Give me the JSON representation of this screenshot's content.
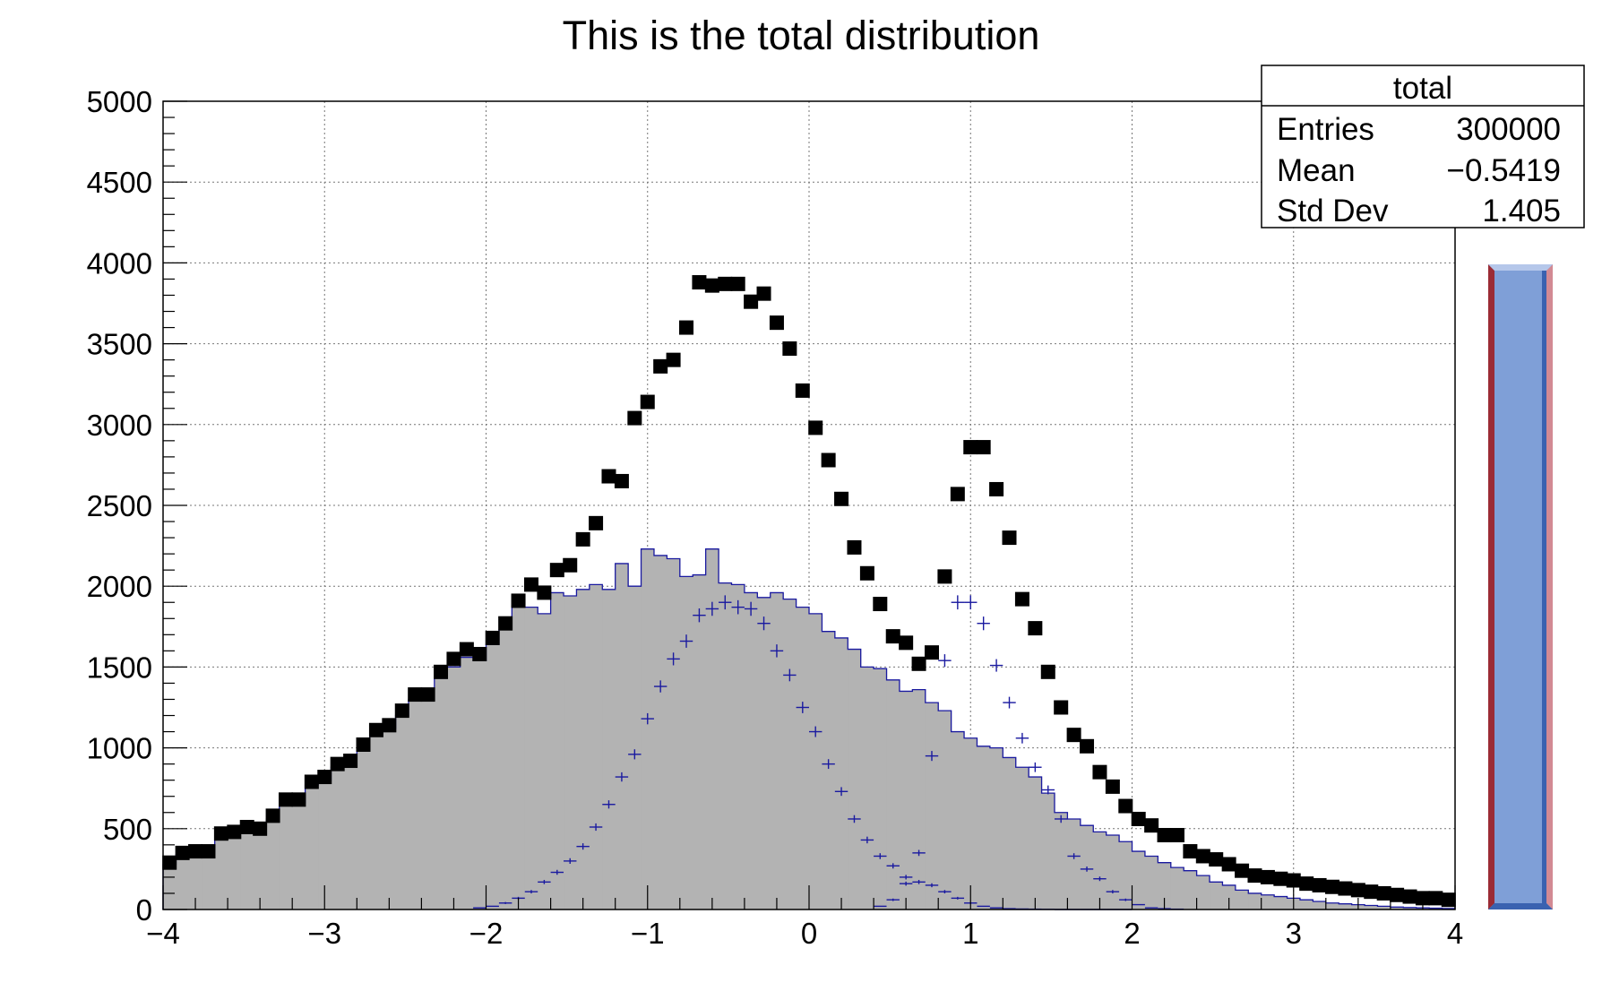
{
  "chart_data": {
    "type": "bar",
    "title": "This is the total distribution",
    "xlabel": "",
    "ylabel": "",
    "xlim": [
      -4,
      4
    ],
    "ylim": [
      0,
      5000
    ],
    "x_ticks": [
      -4,
      -3,
      -2,
      -1,
      0,
      1,
      2,
      3,
      4
    ],
    "x_tick_labels": [
      "−4",
      "−3",
      "−2",
      "−1",
      "0",
      "1",
      "2",
      "3",
      "4"
    ],
    "y_ticks": [
      0,
      500,
      1000,
      1500,
      2000,
      2500,
      3000,
      3500,
      4000,
      4500,
      5000
    ],
    "y_tick_labels": [
      "0",
      "500",
      "1000",
      "1500",
      "2000",
      "2500",
      "3000",
      "3500",
      "4000",
      "4500",
      "5000"
    ],
    "grid": true,
    "bin_width": 0.08,
    "series": [
      {
        "style": "filled-histogram",
        "color": "#b3b3b3",
        "line_color": "#1a1aa0",
        "x": [
          -3.96,
          -3.88,
          -3.8,
          -3.72,
          -3.64,
          -3.56,
          -3.48,
          -3.4,
          -3.32,
          -3.24,
          -3.16,
          -3.08,
          -3.0,
          -2.92,
          -2.84,
          -2.76,
          -2.68,
          -2.6,
          -2.52,
          -2.44,
          -2.36,
          -2.28,
          -2.2,
          -2.12,
          -2.04,
          -1.96,
          -1.88,
          -1.8,
          -1.72,
          -1.64,
          -1.56,
          -1.48,
          -1.4,
          -1.32,
          -1.24,
          -1.16,
          -1.08,
          -1.0,
          -0.92,
          -0.84,
          -0.76,
          -0.68,
          -0.6,
          -0.52,
          -0.44,
          -0.36,
          -0.28,
          -0.2,
          -0.12,
          -0.04,
          0.04,
          0.12,
          0.2,
          0.28,
          0.36,
          0.44,
          0.52,
          0.6,
          0.68,
          0.76,
          0.84,
          0.92,
          1.0,
          1.08,
          1.16,
          1.24,
          1.32,
          1.4,
          1.48,
          1.56,
          1.64,
          1.72,
          1.8,
          1.88,
          1.96,
          2.04,
          2.12,
          2.2,
          2.28,
          2.36,
          2.44,
          2.52,
          2.6,
          2.68,
          2.76,
          2.84,
          2.92,
          3.0,
          3.08,
          3.16,
          3.24,
          3.32,
          3.4,
          3.48,
          3.56,
          3.64,
          3.72,
          3.8,
          3.88,
          3.96
        ],
        "values": [
          280,
          340,
          360,
          360,
          460,
          470,
          500,
          490,
          560,
          660,
          660,
          770,
          800,
          880,
          900,
          990,
          1080,
          1120,
          1200,
          1300,
          1300,
          1430,
          1500,
          1560,
          1540,
          1640,
          1730,
          1880,
          1870,
          1830,
          1960,
          1940,
          1980,
          2010,
          1980,
          2140,
          2000,
          2230,
          2190,
          2170,
          2060,
          2070,
          2230,
          2020,
          2010,
          1960,
          1930,
          1960,
          1920,
          1870,
          1830,
          1720,
          1680,
          1610,
          1500,
          1490,
          1420,
          1350,
          1360,
          1280,
          1230,
          1100,
          1060,
          1010,
          1000,
          940,
          880,
          820,
          720,
          600,
          560,
          520,
          480,
          460,
          420,
          360,
          330,
          290,
          260,
          240,
          210,
          170,
          150,
          120,
          100,
          90,
          80,
          70,
          60,
          50,
          40,
          35,
          30,
          25,
          20,
          15,
          12,
          10,
          8,
          6
        ],
        "name": ""
      },
      {
        "style": "error-bars",
        "color": "#1a1aa0",
        "x": [
          -2.04,
          -1.96,
          -1.88,
          -1.8,
          -1.72,
          -1.64,
          -1.56,
          -1.48,
          -1.4,
          -1.32,
          -1.24,
          -1.16,
          -1.08,
          -1.0,
          -0.92,
          -0.84,
          -0.76,
          -0.68,
          -0.6,
          -0.52,
          -0.44,
          -0.36,
          -0.28,
          -0.2,
          -0.12,
          -0.04,
          0.04,
          0.12,
          0.2,
          0.28,
          0.36,
          0.44,
          0.52,
          0.6,
          0.68,
          0.76,
          0.84,
          0.92,
          1.0,
          1.08,
          1.16,
          1.24,
          1.32,
          1.4,
          1.48,
          1.56,
          1.64,
          1.72,
          1.8,
          1.88,
          1.96
        ],
        "values": [
          10,
          20,
          40,
          70,
          110,
          170,
          230,
          300,
          390,
          510,
          650,
          820,
          960,
          1180,
          1380,
          1550,
          1660,
          1820,
          1860,
          1900,
          1870,
          1860,
          1770,
          1600,
          1450,
          1250,
          1100,
          900,
          730,
          560,
          430,
          330,
          270,
          200,
          170,
          150,
          110,
          70,
          40,
          20,
          10,
          5,
          3,
          2,
          1,
          0,
          0,
          0,
          0,
          0,
          0
        ],
        "name": ""
      },
      {
        "style": "error-bars",
        "color": "#1a1aa0",
        "x": [
          0.44,
          0.52,
          0.6,
          0.68,
          0.76,
          0.84,
          0.92,
          1.0,
          1.08,
          1.16,
          1.24,
          1.32,
          1.4,
          1.48,
          1.56,
          1.64,
          1.72,
          1.8,
          1.88,
          1.96,
          2.04,
          2.12,
          2.2,
          2.28
        ],
        "values": [
          20,
          60,
          160,
          350,
          950,
          1540,
          1900,
          1900,
          1770,
          1510,
          1280,
          1060,
          880,
          740,
          560,
          330,
          250,
          190,
          110,
          60,
          30,
          10,
          5,
          2
        ],
        "name": ""
      },
      {
        "style": "markers",
        "color": "#000000",
        "x": [
          -3.96,
          -3.88,
          -3.8,
          -3.72,
          -3.64,
          -3.56,
          -3.48,
          -3.4,
          -3.32,
          -3.24,
          -3.16,
          -3.08,
          -3.0,
          -2.92,
          -2.84,
          -2.76,
          -2.68,
          -2.6,
          -2.52,
          -2.44,
          -2.36,
          -2.28,
          -2.2,
          -2.12,
          -2.04,
          -1.96,
          -1.88,
          -1.8,
          -1.72,
          -1.64,
          -1.56,
          -1.48,
          -1.4,
          -1.32,
          -1.24,
          -1.16,
          -1.08,
          -1.0,
          -0.92,
          -0.84,
          -0.76,
          -0.68,
          -0.6,
          -0.52,
          -0.44,
          -0.36,
          -0.28,
          -0.2,
          -0.12,
          -0.04,
          0.04,
          0.12,
          0.2,
          0.28,
          0.36,
          0.44,
          0.52,
          0.6,
          0.68,
          0.76,
          0.84,
          0.92,
          1.0,
          1.08,
          1.16,
          1.24,
          1.32,
          1.4,
          1.48,
          1.56,
          1.64,
          1.72,
          1.8,
          1.88,
          1.96,
          2.04,
          2.12,
          2.2,
          2.28,
          2.36,
          2.44,
          2.52,
          2.6,
          2.68,
          2.76,
          2.84,
          2.92,
          3.0,
          3.08,
          3.16,
          3.24,
          3.32,
          3.4,
          3.48,
          3.56,
          3.64,
          3.72,
          3.8,
          3.88,
          3.96
        ],
        "values": [
          290,
          350,
          360,
          360,
          470,
          480,
          510,
          500,
          580,
          680,
          680,
          790,
          820,
          900,
          920,
          1020,
          1110,
          1140,
          1230,
          1330,
          1330,
          1470,
          1550,
          1610,
          1580,
          1680,
          1770,
          1910,
          2010,
          1960,
          2100,
          2130,
          2290,
          2390,
          2680,
          2650,
          3040,
          3140,
          3360,
          3400,
          3600,
          3880,
          3860,
          3870,
          3870,
          3760,
          3810,
          3630,
          3470,
          3210,
          2980,
          2780,
          2540,
          2240,
          2080,
          1890,
          1690,
          1650,
          1520,
          1590,
          2060,
          2570,
          2860,
          2860,
          2600,
          2300,
          1920,
          1740,
          1470,
          1250,
          1080,
          1010,
          850,
          760,
          640,
          560,
          520,
          460,
          460,
          360,
          330,
          310,
          280,
          240,
          210,
          200,
          190,
          180,
          160,
          150,
          140,
          130,
          120,
          110,
          100,
          90,
          80,
          70,
          70,
          60
        ],
        "name": ""
      }
    ],
    "legend": {
      "placement": "top-right",
      "title": "total",
      "rows": [
        {
          "label": "Entries",
          "value": "300000"
        },
        {
          "label": "Mean",
          "value": "−0.5419"
        },
        {
          "label": "Std Dev",
          "value": "1.405"
        }
      ]
    },
    "palette_bar": {
      "fill": "#7f9fd7",
      "edge_left": "#9b2b35",
      "edge_right": "#d28a94",
      "edge_dark": "#3a62b0",
      "edge_light": "#b5c7ea"
    }
  }
}
